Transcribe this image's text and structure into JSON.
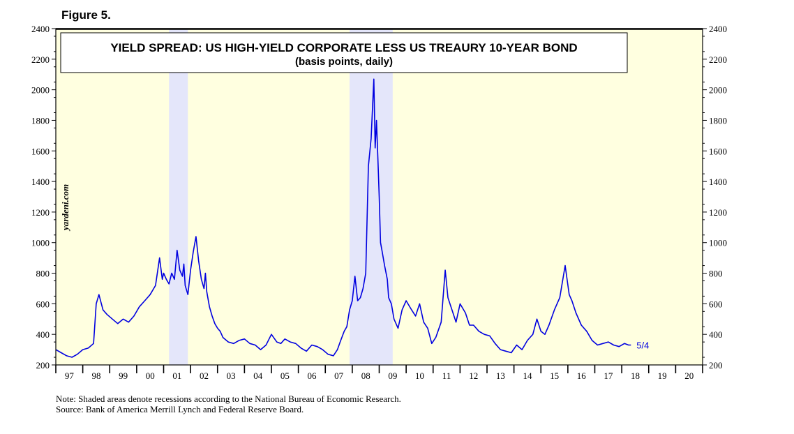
{
  "figure_label": "Figure 5.",
  "notes": {
    "note": "Note: Shaded areas denote recessions according to the National Bureau of Economic Research.",
    "source": "Source: Bank of America Merrill Lynch and Federal Reserve Board."
  },
  "watermark": "yardeni.com",
  "colors": {
    "plot_background": "#ffffe0",
    "recession_shade": "#e4e6fa",
    "series_line": "#0000e0",
    "axis": "#000000"
  },
  "chart_data": {
    "type": "line",
    "title": "YIELD SPREAD: US HIGH-YIELD CORPORATE LESS US TREAURY 10-YEAR BOND",
    "subtitle": "(basis points, daily)",
    "xlabel": "",
    "ylabel": "",
    "ylim": [
      200,
      2400
    ],
    "xlim": [
      1997.0,
      2021.0
    ],
    "yticks": [
      200,
      400,
      600,
      800,
      1000,
      1200,
      1400,
      1600,
      1800,
      2000,
      2200,
      2400
    ],
    "xtick_labels": [
      "97",
      "98",
      "99",
      "00",
      "01",
      "02",
      "03",
      "04",
      "05",
      "06",
      "07",
      "08",
      "09",
      "10",
      "11",
      "12",
      "13",
      "14",
      "15",
      "16",
      "17",
      "18",
      "19",
      "20"
    ],
    "grid": false,
    "recessions": [
      [
        2001.2,
        2001.9
      ],
      [
        2007.9,
        2009.5
      ]
    ],
    "end_annotation": "5/4",
    "series": [
      {
        "x": [
          1997.0,
          1997.2,
          1997.4,
          1997.6,
          1997.8,
          1998.0,
          1998.2,
          1998.4,
          1998.5,
          1998.6,
          1998.75,
          1998.9,
          1999.1,
          1999.3,
          1999.5,
          1999.7,
          1999.9,
          2000.1,
          2000.3,
          2000.5,
          2000.7,
          2000.85,
          2000.95,
          2001.0,
          2001.1,
          2001.2,
          2001.3,
          2001.4,
          2001.5,
          2001.6,
          2001.7,
          2001.75,
          2001.8,
          2001.9,
          2002.0,
          2002.1,
          2002.2,
          2002.3,
          2002.4,
          2002.5,
          2002.55,
          2002.6,
          2002.7,
          2002.8,
          2002.9,
          2003.0,
          2003.1,
          2003.2,
          2003.4,
          2003.6,
          2003.8,
          2004.0,
          2004.2,
          2004.4,
          2004.6,
          2004.8,
          2005.0,
          2005.2,
          2005.35,
          2005.5,
          2005.7,
          2005.9,
          2006.1,
          2006.3,
          2006.5,
          2006.7,
          2006.9,
          2007.1,
          2007.3,
          2007.45,
          2007.55,
          2007.7,
          2007.8,
          2007.9,
          2008.0,
          2008.1,
          2008.2,
          2008.3,
          2008.4,
          2008.5,
          2008.6,
          2008.7,
          2008.8,
          2008.85,
          2008.9,
          2008.95,
          2009.0,
          2009.05,
          2009.1,
          2009.2,
          2009.3,
          2009.35,
          2009.45,
          2009.55,
          2009.7,
          2009.85,
          2010.0,
          2010.2,
          2010.35,
          2010.5,
          2010.65,
          2010.8,
          2010.95,
          2011.1,
          2011.3,
          2011.45,
          2011.55,
          2011.7,
          2011.85,
          2012.0,
          2012.2,
          2012.35,
          2012.5,
          2012.7,
          2012.9,
          2013.1,
          2013.3,
          2013.5,
          2013.7,
          2013.9,
          2014.1,
          2014.3,
          2014.5,
          2014.7,
          2014.85,
          2015.0,
          2015.15,
          2015.3,
          2015.5,
          2015.7,
          2015.9,
          2016.05,
          2016.15,
          2016.3,
          2016.5,
          2016.7,
          2016.9,
          2017.1,
          2017.3,
          2017.5,
          2017.7,
          2017.9,
          2018.1,
          2018.25,
          2018.34
        ],
        "y": [
          300,
          280,
          260,
          250,
          270,
          300,
          310,
          340,
          600,
          660,
          560,
          530,
          500,
          470,
          500,
          480,
          520,
          580,
          620,
          660,
          720,
          900,
          760,
          800,
          760,
          730,
          800,
          760,
          950,
          820,
          780,
          860,
          720,
          660,
          820,
          940,
          1040,
          880,
          760,
          700,
          800,
          680,
          580,
          520,
          470,
          440,
          420,
          380,
          350,
          340,
          360,
          370,
          340,
          330,
          300,
          330,
          400,
          350,
          340,
          370,
          350,
          340,
          310,
          290,
          330,
          320,
          300,
          270,
          260,
          300,
          350,
          420,
          450,
          560,
          620,
          780,
          620,
          640,
          700,
          800,
          1500,
          1680,
          2070,
          1620,
          1800,
          1550,
          1300,
          1000,
          950,
          850,
          760,
          640,
          600,
          500,
          440,
          560,
          620,
          560,
          520,
          600,
          480,
          440,
          340,
          380,
          480,
          820,
          640,
          560,
          480,
          600,
          540,
          460,
          460,
          420,
          400,
          390,
          340,
          300,
          290,
          280,
          330,
          300,
          360,
          400,
          500,
          420,
          400,
          460,
          560,
          640,
          850,
          660,
          620,
          540,
          460,
          420,
          360,
          330,
          340,
          350,
          330,
          320,
          340,
          330,
          330
        ]
      }
    ]
  }
}
